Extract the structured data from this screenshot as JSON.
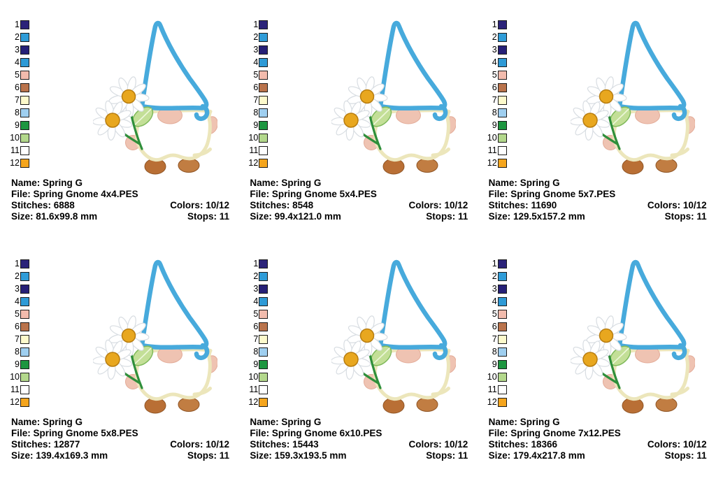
{
  "page": {
    "background": "#ffffff"
  },
  "labels": {
    "name": "Name:",
    "file": "File:",
    "stitches": "Stitches:",
    "colors": "Colors:",
    "size": "Size:",
    "stops": "Stops:"
  },
  "palette": {
    "entries": [
      {
        "num": "1",
        "color": "#2b2379"
      },
      {
        "num": "2",
        "color": "#2f9cd8"
      },
      {
        "num": "3",
        "color": "#262077"
      },
      {
        "num": "4",
        "color": "#2e9ad6"
      },
      {
        "num": "5",
        "color": "#f2bbad"
      },
      {
        "num": "6",
        "color": "#b9734c"
      },
      {
        "num": "7",
        "color": "#fdfacc"
      },
      {
        "num": "8",
        "color": "#9fcff0"
      },
      {
        "num": "9",
        "color": "#1d9640"
      },
      {
        "num": "10",
        "color": "#b3d88c"
      },
      {
        "num": "11",
        "color": "#ffffff"
      },
      {
        "num": "12",
        "color": "#f5a51d"
      }
    ]
  },
  "design": {
    "image": "spring-gnome-with-daisies-applique",
    "colors": {
      "hat_blue": "#47aadc",
      "body_cream": "#ece6bb",
      "skin_pink": "#efc3b2",
      "skin_edge": "#e3ab98",
      "foot_left_brown": "#b96f35",
      "foot_right_brown": "#c17d42",
      "foot_edge": "#8f5424",
      "daisy_center_orange": "#e8a71f",
      "daisy_center_edge": "#b87d10",
      "petal_white": "#ffffff",
      "petal_edge": "#d8dde2",
      "leaf_green": "#c3df97",
      "leaf_edge": "#7fb95a",
      "stem_green": "#2f8f3b"
    }
  },
  "cells": [
    {
      "name": "Spring G",
      "file": "Spring Gnome 4x4.PES",
      "stitches": "6888",
      "colors": "10/12",
      "size": "81.6x99.8 mm",
      "stops": "11"
    },
    {
      "name": "Spring G",
      "file": "Spring Gnome 5x4.PES",
      "stitches": "8548",
      "colors": "10/12",
      "size": "99.4x121.0 mm",
      "stops": "11"
    },
    {
      "name": "Spring G",
      "file": "Spring Gnome 5x7.PES",
      "stitches": "11690",
      "colors": "10/12",
      "size": "129.5x157.2 mm",
      "stops": "11"
    },
    {
      "name": "Spring G",
      "file": "Spring Gnome 5x8.PES",
      "stitches": "12877",
      "colors": "10/12",
      "size": "139.4x169.3 mm",
      "stops": "11"
    },
    {
      "name": "Spring G",
      "file": "Spring Gnome 6x10.PES",
      "stitches": "15443",
      "colors": "10/12",
      "size": "159.3x193.5 mm",
      "stops": "11"
    },
    {
      "name": "Spring G",
      "file": "Spring Gnome 7x12.PES",
      "stitches": "18366",
      "colors": "10/12",
      "size": "179.4x217.8 mm",
      "stops": "11"
    }
  ]
}
